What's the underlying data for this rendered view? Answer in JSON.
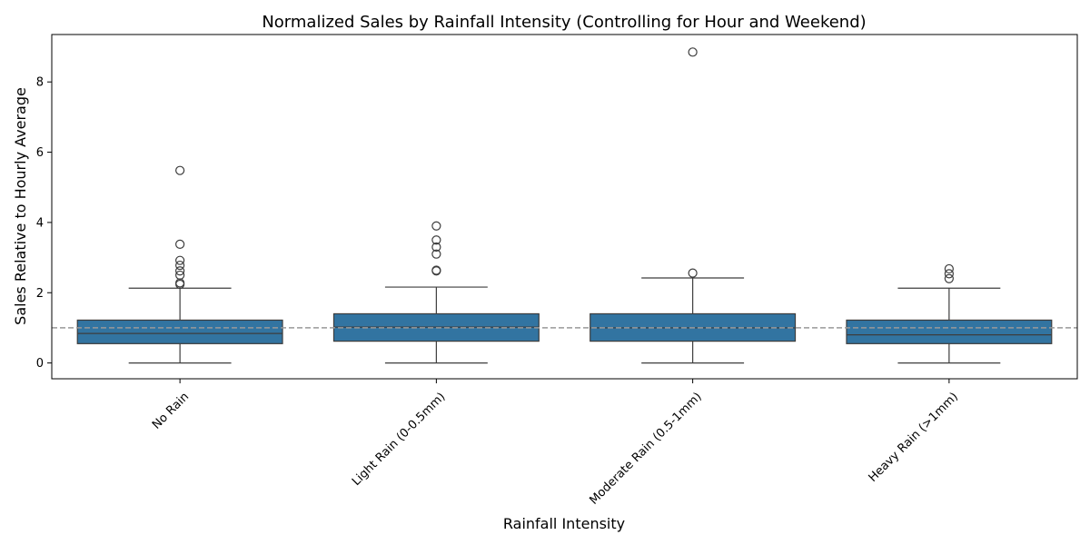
{
  "chart_data": {
    "type": "box",
    "title": "Normalized Sales by Rainfall Intensity (Controlling for Hour and Weekend)",
    "xlabel": "Rainfall Intensity",
    "ylabel": "Sales Relative to Hourly Average",
    "categories": [
      "No Rain",
      "Light Rain (0-0.5mm)",
      "Moderate Rain (0.5-1mm)",
      "Heavy Rain (>1mm)"
    ],
    "ylim": [
      -0.45,
      9.35
    ],
    "yticks": [
      0,
      2,
      4,
      6,
      8
    ],
    "reference_line": {
      "y": 1.0,
      "style": "dashed",
      "color": "#999999"
    },
    "box_color": "#3274a1",
    "edge_color": "#3d3d3d",
    "series": [
      {
        "category": "No Rain",
        "whisker_low": 0.0,
        "q1": 0.55,
        "median": 0.84,
        "q3": 1.22,
        "whisker_high": 2.13,
        "outliers": [
          5.48,
          3.38,
          2.92,
          2.78,
          2.62,
          2.5,
          2.28,
          2.24
        ]
      },
      {
        "category": "Light Rain (0-0.5mm)",
        "whisker_low": 0.0,
        "q1": 0.62,
        "median": 1.02,
        "q3": 1.4,
        "whisker_high": 2.16,
        "outliers": [
          3.9,
          3.5,
          3.3,
          3.1,
          2.64,
          2.62
        ]
      },
      {
        "category": "Moderate Rain (0.5-1mm)",
        "whisker_low": 0.0,
        "q1": 0.62,
        "median": 1.0,
        "q3": 1.4,
        "whisker_high": 2.42,
        "outliers": [
          8.85,
          2.56
        ]
      },
      {
        "category": "Heavy Rain (>1mm)",
        "whisker_low": 0.0,
        "q1": 0.55,
        "median": 0.8,
        "q3": 1.22,
        "whisker_high": 2.13,
        "outliers": [
          2.68,
          2.54,
          2.4
        ]
      }
    ]
  }
}
